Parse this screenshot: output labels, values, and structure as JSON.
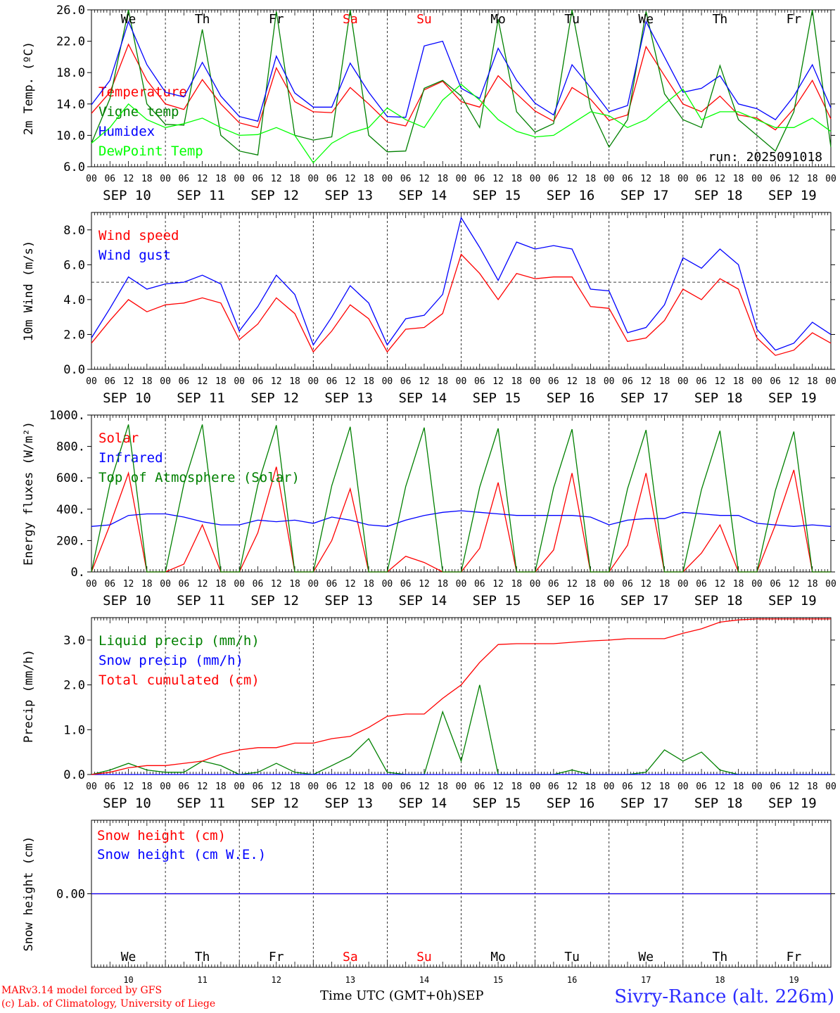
{
  "chart_data": [
    {
      "type": "line",
      "ylabel": "2m Temp. (ºC)",
      "ylim": [
        6.0,
        26.0
      ],
      "yticks": [
        "6.0",
        "10.0",
        "14.0",
        "18.0",
        "22.0",
        "26.0"
      ],
      "grid": false,
      "legend_placement": "left",
      "annotation": "run: 2025091018",
      "weekdays": [
        "We",
        "Th",
        "Fr",
        "Sa",
        "Su",
        "Mo",
        "Tu",
        "We",
        "Th",
        "Fr"
      ],
      "weekend_color": "#ff0000",
      "weekend_days": [
        3,
        4
      ],
      "x_hours": [
        0,
        6,
        12,
        18,
        24,
        30,
        36,
        42,
        48,
        54,
        60,
        66,
        72,
        78,
        84,
        90,
        96,
        102,
        108,
        114,
        120,
        126,
        132,
        138,
        144,
        150,
        156,
        162,
        168,
        174,
        180,
        186,
        192,
        198,
        204,
        210,
        216,
        222,
        228,
        234,
        240
      ],
      "series": [
        {
          "name": "Temperature",
          "color": "#ff0000",
          "values": [
            12.8,
            15.5,
            21.6,
            17.0,
            14.0,
            13.3,
            17.1,
            14.0,
            11.6,
            11.0,
            18.6,
            14.3,
            13.0,
            12.9,
            16.1,
            14.0,
            11.7,
            11.2,
            15.8,
            16.9,
            14.3,
            13.6,
            17.6,
            15.3,
            13.1,
            11.8,
            16.1,
            14.6,
            11.9,
            12.6,
            21.3,
            17.6,
            14.0,
            13.0,
            15.0,
            12.6,
            12.2,
            10.7,
            13.4,
            17.0,
            12.1
          ]
        },
        {
          "name": "Vigne temp",
          "color": "#008000",
          "values": [
            9.0,
            14.7,
            26.0,
            14.0,
            11.4,
            11.3,
            23.5,
            10.0,
            8.0,
            7.5,
            25.8,
            10.0,
            9.4,
            9.8,
            26.0,
            10.0,
            7.9,
            8.0,
            16.0,
            17.0,
            15.0,
            11.0,
            24.8,
            13.0,
            10.4,
            11.5,
            26.0,
            13.5,
            8.5,
            12.0,
            25.8,
            15.3,
            12.0,
            11.0,
            18.9,
            12.0,
            10.0,
            8.0,
            13.0,
            26.0,
            8.5
          ]
        },
        {
          "name": "Humidex",
          "color": "#0000ff",
          "values": [
            13.9,
            17.0,
            24.5,
            19.0,
            15.5,
            14.9,
            19.3,
            15.0,
            12.4,
            11.8,
            20.1,
            15.4,
            13.6,
            13.6,
            19.2,
            15.5,
            12.4,
            12.3,
            21.4,
            22.0,
            16.0,
            14.7,
            21.1,
            17.0,
            14.1,
            12.6,
            19.0,
            16.1,
            13.0,
            13.8,
            24.5,
            20.0,
            15.5,
            16.0,
            17.6,
            14.0,
            13.4,
            12.0,
            15.0,
            19.0,
            13.5
          ]
        },
        {
          "name": "DewPoint Temp",
          "color": "#00ff00",
          "values": [
            9.0,
            11.0,
            14.0,
            12.0,
            11.0,
            11.5,
            12.2,
            11.0,
            10.0,
            10.1,
            11.0,
            10.0,
            6.5,
            9.0,
            10.3,
            11.0,
            13.5,
            12.0,
            11.0,
            14.5,
            16.5,
            14.5,
            12.0,
            10.5,
            9.8,
            10.0,
            11.5,
            13.0,
            12.5,
            11.0,
            12.0,
            14.0,
            15.9,
            12.0,
            13.0,
            13.0,
            12.0,
            11.0,
            11.0,
            12.2,
            10.5
          ]
        }
      ]
    },
    {
      "type": "line",
      "ylabel": "10m Wind (m/s)",
      "ylim": [
        0.0,
        9.0
      ],
      "yticks": [
        "0.0",
        "2.0",
        "4.0",
        "6.0",
        "8.0"
      ],
      "reference_line": 5.0,
      "grid": false,
      "legend_placement": "left",
      "x_hours": [
        0,
        6,
        12,
        18,
        24,
        30,
        36,
        42,
        48,
        54,
        60,
        66,
        72,
        78,
        84,
        90,
        96,
        102,
        108,
        114,
        120,
        126,
        132,
        138,
        144,
        150,
        156,
        162,
        168,
        174,
        180,
        186,
        192,
        198,
        204,
        210,
        216,
        222,
        228,
        234,
        240
      ],
      "series": [
        {
          "name": "Wind speed",
          "color": "#ff0000",
          "values": [
            1.5,
            2.8,
            4.0,
            3.3,
            3.7,
            3.8,
            4.1,
            3.8,
            1.7,
            2.6,
            4.1,
            3.2,
            1.0,
            2.2,
            3.7,
            2.9,
            1.0,
            2.3,
            2.4,
            3.2,
            6.6,
            5.5,
            4.0,
            5.5,
            5.2,
            5.3,
            5.3,
            3.6,
            3.5,
            1.6,
            1.8,
            2.8,
            4.6,
            4.0,
            5.2,
            4.6,
            1.8,
            0.8,
            1.1,
            2.1,
            1.5
          ]
        },
        {
          "name": "Wind gust",
          "color": "#0000ff",
          "values": [
            1.8,
            3.5,
            5.3,
            4.6,
            4.9,
            5.0,
            5.4,
            4.9,
            2.2,
            3.6,
            5.4,
            4.3,
            1.4,
            3.0,
            4.8,
            3.8,
            1.4,
            2.9,
            3.1,
            4.3,
            8.7,
            7.0,
            5.1,
            7.3,
            6.9,
            7.1,
            6.9,
            4.6,
            4.5,
            2.1,
            2.4,
            3.7,
            6.4,
            5.8,
            6.9,
            6.0,
            2.3,
            1.1,
            1.5,
            2.7,
            2.0
          ]
        }
      ]
    },
    {
      "type": "line",
      "ylabel": "Energy fluxes (W/m²)",
      "ylim": [
        0,
        1000
      ],
      "yticks": [
        "0.",
        "200.",
        "400.",
        "600.",
        "800.",
        "1000."
      ],
      "grid": false,
      "legend_placement": "left",
      "x_hours": [
        0,
        6,
        12,
        18,
        24,
        30,
        36,
        42,
        48,
        54,
        60,
        66,
        72,
        78,
        84,
        90,
        96,
        102,
        108,
        114,
        120,
        126,
        132,
        138,
        144,
        150,
        156,
        162,
        168,
        174,
        180,
        186,
        192,
        198,
        204,
        210,
        216,
        222,
        228,
        234,
        240
      ],
      "series": [
        {
          "name": "Solar",
          "color": "#ff0000",
          "values": [
            0,
            300,
            630,
            0,
            0,
            50,
            300,
            0,
            0,
            250,
            670,
            0,
            0,
            200,
            530,
            0,
            0,
            100,
            60,
            0,
            0,
            150,
            570,
            0,
            0,
            140,
            630,
            0,
            0,
            170,
            630,
            0,
            0,
            120,
            300,
            0,
            0,
            300,
            650,
            0,
            0
          ]
        },
        {
          "name": "Infrared",
          "color": "#0000ff",
          "values": [
            290,
            300,
            360,
            370,
            370,
            350,
            320,
            300,
            300,
            330,
            320,
            330,
            310,
            350,
            330,
            300,
            290,
            330,
            360,
            380,
            390,
            380,
            370,
            360,
            360,
            360,
            360,
            350,
            300,
            330,
            340,
            340,
            380,
            370,
            360,
            360,
            310,
            300,
            290,
            300,
            290
          ]
        },
        {
          "name": "Top of Atmosphere (Solar)",
          "color": "#008000",
          "values": [
            0,
            560,
            940,
            0,
            0,
            560,
            940,
            0,
            0,
            555,
            935,
            0,
            0,
            550,
            925,
            0,
            0,
            545,
            920,
            0,
            0,
            540,
            915,
            0,
            0,
            535,
            910,
            0,
            0,
            530,
            905,
            0,
            0,
            525,
            900,
            0,
            0,
            520,
            895,
            0,
            0
          ]
        }
      ]
    },
    {
      "type": "line",
      "ylabel": "Precip (mm/h)",
      "ylim": [
        0.0,
        3.5
      ],
      "yticks": [
        "0.0",
        "1.0",
        "2.0",
        "3.0"
      ],
      "grid": false,
      "legend_placement": "left",
      "x_hours": [
        0,
        6,
        12,
        18,
        24,
        30,
        36,
        42,
        48,
        54,
        60,
        66,
        72,
        78,
        84,
        90,
        96,
        102,
        108,
        114,
        120,
        126,
        132,
        138,
        144,
        150,
        156,
        162,
        168,
        174,
        180,
        186,
        192,
        198,
        204,
        210,
        216,
        222,
        228,
        234,
        240
      ],
      "series": [
        {
          "name": "Liquid precip (mm/h)",
          "color": "#008000",
          "values": [
            0.0,
            0.1,
            0.25,
            0.1,
            0.05,
            0.05,
            0.3,
            0.2,
            0.0,
            0.05,
            0.25,
            0.05,
            0.0,
            0.2,
            0.4,
            0.8,
            0.05,
            0.0,
            0.0,
            1.4,
            0.3,
            2.0,
            0.0,
            0.0,
            0.0,
            0.0,
            0.1,
            0.0,
            0.0,
            0.0,
            0.05,
            0.55,
            0.3,
            0.5,
            0.1,
            0.0,
            0.0,
            0.0,
            0.0,
            0.0,
            0.0
          ]
        },
        {
          "name": "Snow precip (mm/h)",
          "color": "#0000ff",
          "values": [
            0,
            0,
            0,
            0,
            0,
            0,
            0,
            0,
            0,
            0,
            0,
            0,
            0,
            0,
            0,
            0,
            0,
            0,
            0,
            0,
            0,
            0,
            0,
            0,
            0,
            0,
            0,
            0,
            0,
            0,
            0,
            0,
            0,
            0,
            0,
            0,
            0,
            0,
            0,
            0,
            0
          ]
        },
        {
          "name": "Total cumulated (cm)",
          "color": "#ff0000",
          "values": [
            0.0,
            0.05,
            0.15,
            0.2,
            0.2,
            0.25,
            0.3,
            0.45,
            0.55,
            0.6,
            0.6,
            0.7,
            0.7,
            0.8,
            0.85,
            1.05,
            1.3,
            1.35,
            1.35,
            1.7,
            2.0,
            2.5,
            2.9,
            2.92,
            2.92,
            2.92,
            2.95,
            2.98,
            3.0,
            3.03,
            3.03,
            3.03,
            3.15,
            3.25,
            3.4,
            3.45,
            3.47,
            3.47,
            3.47,
            3.47,
            3.47
          ]
        }
      ]
    },
    {
      "type": "line",
      "ylabel": "Snow height (cm)",
      "ylim": [
        -1.0,
        1.0
      ],
      "yticks": [
        "0.00"
      ],
      "grid": false,
      "legend_placement": "left",
      "x_hours": [
        0,
        240
      ],
      "series": [
        {
          "name": "Snow height (cm)",
          "color": "#ff0000",
          "values": [
            0.0,
            0.0
          ]
        },
        {
          "name": "Snow height (cm W.E.)",
          "color": "#0000ff",
          "values": [
            0.0,
            0.0
          ]
        }
      ]
    }
  ],
  "x_axis": {
    "hour_tick_labels": [
      "00",
      "06",
      "12",
      "18"
    ],
    "final_tick_label": "00",
    "date_labels": [
      "SEP 10",
      "SEP 11",
      "SEP 12",
      "SEP 13",
      "SEP 14",
      "SEP 15",
      "SEP 16",
      "SEP 17",
      "SEP 18",
      "SEP 19"
    ],
    "day_numbers": [
      "10",
      "11",
      "12",
      "13",
      "14",
      "15",
      "16",
      "17",
      "18",
      "19"
    ],
    "month": "SEP",
    "title": "Time UTC (GMT+0h)"
  },
  "footer": {
    "credit_line1": "MARv3.14 model forced by GFS",
    "credit_line2": "(c) Lab. of Climatology, University of Liege",
    "station": "Sivry-Rance (alt. 226m)"
  }
}
